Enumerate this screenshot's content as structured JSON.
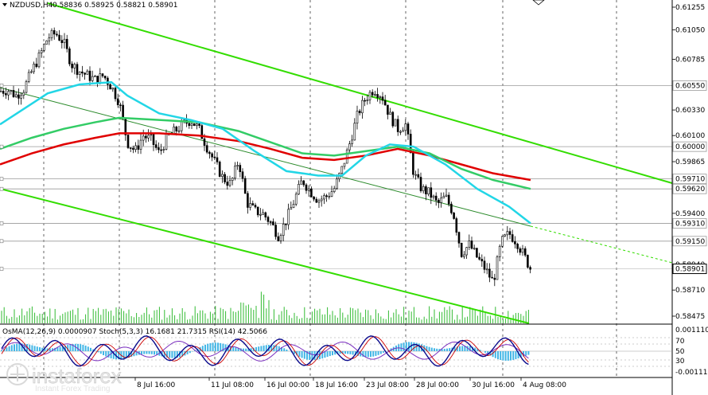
{
  "window": {
    "symbol_title": "NZDUSD,H4",
    "ohlc_text": "0.58836 0.58925 0.58821 0.58901"
  },
  "price_axis": {
    "ticks": [
      "0.61255",
      "0.61050",
      "0.60785",
      "0.60330",
      "0.60100",
      "0.59865",
      "0.59400",
      "0.58940",
      "0.58710",
      "0.58475"
    ],
    "tick_values": [
      0.61255,
      0.6105,
      0.60785,
      0.6033,
      0.601,
      0.59865,
      0.594,
      0.5894,
      0.5871,
      0.58475
    ],
    "level_tags": [
      {
        "text": "0.60550",
        "value": 0.6055
      },
      {
        "text": "0.60000",
        "value": 0.6
      },
      {
        "text": "0.59710",
        "value": 0.5971
      },
      {
        "text": "0.59620",
        "value": 0.5962
      },
      {
        "text": "0.59310",
        "value": 0.5931
      },
      {
        "text": "0.59150",
        "value": 0.5915
      }
    ],
    "current_price_tag": {
      "text": "0.58901",
      "value": 0.58901
    }
  },
  "time_axis": {
    "labels": [
      "8 Jul 16:00",
      "11 Jul 08:00",
      "16 Jul 00:00",
      "18 Jul 16:00",
      "23 Jul 08:00",
      "28 Jul 00:00",
      "30 Jul 16:00",
      "4 Aug 08:00"
    ]
  },
  "indicator_panel": {
    "header_text": "OsMA(12,26,9) 0.0000907  Stoch(5,3,3) 16.1681 21.7315  RSI(14) 42.5066",
    "right_labels": [
      "0.00111085",
      "70",
      "50",
      "30",
      "-0.00111800"
    ]
  },
  "watermark": {
    "brand": "instaforex",
    "tagline": "Instant Forex Trading"
  },
  "colors": {
    "candles": "#000000",
    "ema_slow": "#e00000",
    "ema_mid": "#33cc66",
    "ema_fast": "#22d6e6",
    "channel": "#33dd00",
    "osma": "#41b6e6",
    "stoch_main": "#0a0a8c",
    "stoch_signal": "#cc0000",
    "rsi": "#7b2fbf"
  }
}
